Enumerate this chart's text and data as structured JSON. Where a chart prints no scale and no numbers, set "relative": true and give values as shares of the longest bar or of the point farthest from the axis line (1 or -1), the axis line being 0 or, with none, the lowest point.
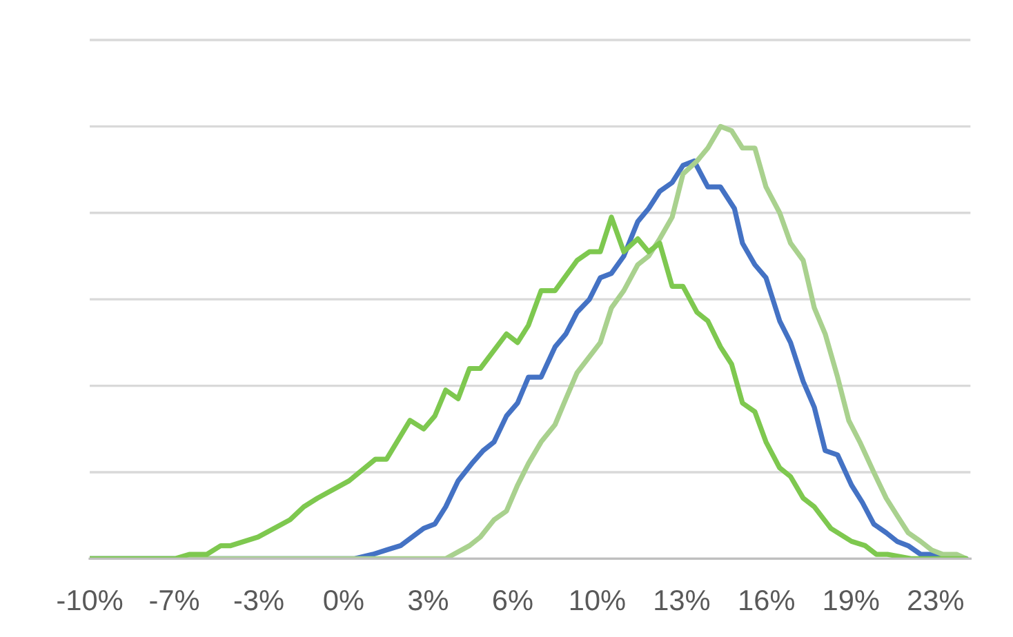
{
  "chart_data": {
    "type": "line",
    "relative": true,
    "grid": "y",
    "tick_labels": "x",
    "xlim": [
      -10,
      24.07
    ],
    "xticks": [
      {
        "value": -10,
        "label": "-10%"
      },
      {
        "value": -6.73,
        "label": "-7%"
      },
      {
        "value": -3.46,
        "label": "-3%"
      },
      {
        "value": -0.18,
        "label": "0%"
      },
      {
        "value": 3.09,
        "label": "3%"
      },
      {
        "value": 6.36,
        "label": "6%"
      },
      {
        "value": 9.63,
        "label": "10%"
      },
      {
        "value": 12.9,
        "label": "13%"
      },
      {
        "value": 16.18,
        "label": "16%"
      },
      {
        "value": 19.45,
        "label": "19%"
      },
      {
        "value": 22.72,
        "label": "23%"
      }
    ],
    "series": [
      {
        "color": "#4472c4",
        "x": [
          -10,
          0.25,
          0.95,
          1.48,
          2.02,
          2.92,
          3.35,
          3.77,
          4.25,
          4.78,
          5.22,
          5.64,
          6.12,
          6.55,
          6.97,
          7.46,
          8.0,
          8.42,
          8.85,
          9.33,
          9.75,
          10.18,
          10.66,
          11.2,
          11.62,
          12.05,
          12.53,
          12.95,
          13.38,
          13.91,
          14.4,
          14.94,
          15.25,
          15.73,
          16.16,
          16.69,
          17.11,
          17.6,
          18.03,
          18.45,
          18.93,
          19.47,
          19.89,
          20.33,
          20.81,
          21.23,
          21.66,
          22.14,
          22.84,
          23.9
        ],
        "values": [
          0,
          0,
          0.01,
          0.02,
          0.03,
          0.07,
          0.08,
          0.12,
          0.18,
          0.22,
          0.25,
          0.27,
          0.33,
          0.36,
          0.42,
          0.42,
          0.49,
          0.52,
          0.57,
          0.6,
          0.65,
          0.66,
          0.7,
          0.78,
          0.81,
          0.85,
          0.87,
          0.91,
          0.92,
          0.86,
          0.86,
          0.81,
          0.73,
          0.68,
          0.65,
          0.55,
          0.5,
          0.41,
          0.35,
          0.25,
          0.24,
          0.17,
          0.13,
          0.08,
          0.06,
          0.04,
          0.03,
          0.01,
          0.01,
          0
        ]
      },
      {
        "color": "#a9d18e",
        "x": [
          -10,
          3.77,
          4.69,
          5.11,
          5.64,
          6.12,
          6.55,
          6.97,
          7.46,
          8.0,
          8.42,
          8.85,
          9.75,
          10.18,
          10.66,
          11.2,
          11.62,
          12.05,
          12.53,
          12.95,
          13.49,
          13.91,
          14.4,
          14.83,
          15.25,
          15.73,
          16.16,
          16.69,
          17.11,
          17.6,
          18.03,
          18.45,
          18.93,
          19.36,
          19.79,
          20.33,
          20.81,
          21.23,
          21.66,
          22.14,
          22.57,
          23.0,
          23.53,
          23.9
        ],
        "values": [
          0,
          0,
          0.03,
          0.05,
          0.09,
          0.11,
          0.17,
          0.22,
          0.27,
          0.31,
          0.37,
          0.43,
          0.5,
          0.58,
          0.62,
          0.68,
          0.7,
          0.74,
          0.79,
          0.89,
          0.92,
          0.95,
          1.0,
          0.99,
          0.95,
          0.95,
          0.86,
          0.8,
          0.73,
          0.69,
          0.58,
          0.52,
          0.42,
          0.32,
          0.27,
          0.2,
          0.14,
          0.1,
          0.06,
          0.04,
          0.02,
          0.01,
          0.01,
          0
        ]
      },
      {
        "color": "#7ec84f",
        "x": [
          -10,
          -7.6,
          -6.69,
          -6.15,
          -5.47,
          -4.93,
          -4.55,
          -3.49,
          -2.25,
          -1.72,
          -1.19,
          0.03,
          1.05,
          1.48,
          2.39,
          2.92,
          3.35,
          3.77,
          4.25,
          4.69,
          5.11,
          6.12,
          6.55,
          6.97,
          7.46,
          8.0,
          8.85,
          9.33,
          9.75,
          10.18,
          10.66,
          11.2,
          11.62,
          12.05,
          12.53,
          12.95,
          13.49,
          13.91,
          14.4,
          14.83,
          15.25,
          15.73,
          16.16,
          16.69,
          17.11,
          17.6,
          18.03,
          18.67,
          19.47,
          20.0,
          20.43,
          20.86,
          21.77,
          23.9
        ],
        "values": [
          0,
          0,
          0,
          0.01,
          0.01,
          0.03,
          0.03,
          0.05,
          0.09,
          0.12,
          0.14,
          0.18,
          0.23,
          0.23,
          0.32,
          0.3,
          0.33,
          0.39,
          0.37,
          0.44,
          0.44,
          0.52,
          0.5,
          0.54,
          0.62,
          0.62,
          0.69,
          0.71,
          0.71,
          0.79,
          0.71,
          0.74,
          0.71,
          0.73,
          0.63,
          0.63,
          0.57,
          0.55,
          0.49,
          0.45,
          0.36,
          0.34,
          0.27,
          0.21,
          0.19,
          0.14,
          0.12,
          0.07,
          0.04,
          0.03,
          0.01,
          0.01,
          0,
          0
        ]
      }
    ]
  }
}
